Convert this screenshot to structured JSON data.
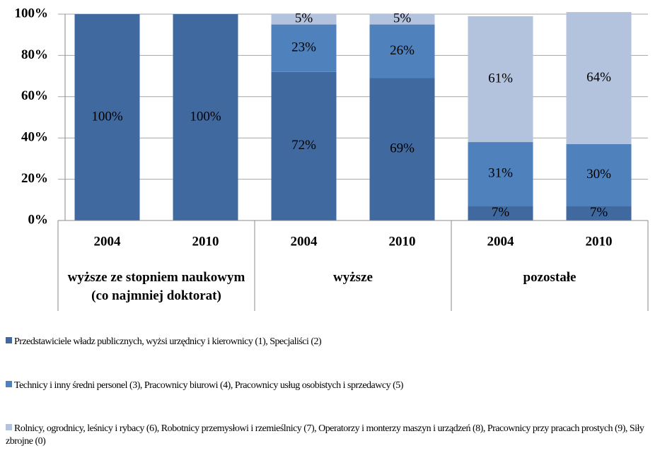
{
  "chart_data": {
    "type": "stacked-bar",
    "categories": [
      "2004",
      "2010",
      "2004",
      "2010",
      "2004",
      "2010"
    ],
    "groups": [
      "wyższe ze stopniem naukowym (co najmniej doktorat)",
      "wyższe",
      "pozostałe"
    ],
    "series": [
      {
        "name": "Przedstawiciele władz publicznych, wyżsi urzędnicy i kierownicy (1), Specjaliści (2)",
        "color": "#40699f",
        "values": [
          100,
          100,
          72,
          69,
          7,
          7
        ],
        "value_labels": [
          "100%",
          "100%",
          "72%",
          "69%",
          "7%",
          "7%"
        ]
      },
      {
        "name": "Technicy i inny średni personel (3), Pracownicy biurowi (4), Pracownicy usług osobistych i sprzedawcy (5)",
        "color": "#4f81bd",
        "values": [
          null,
          null,
          23,
          26,
          31,
          30
        ],
        "value_labels": [
          null,
          null,
          "23%",
          "26%",
          "31%",
          "30%"
        ]
      },
      {
        "name": "Rolnicy, ogrodnicy, leśnicy i rybacy (6), Robotnicy przemysłowi i rzemieślnicy (7), Operatorzy i monterzy maszyn i urządzeń (8), Pracownicy przy pracach prostych (9), Siły zbrojne (0)",
        "color": "#b3c2dd",
        "values": [
          null,
          null,
          5,
          5,
          61,
          64
        ],
        "value_labels": [
          null,
          null,
          "5%",
          "5%",
          "61%",
          "64%"
        ]
      }
    ],
    "ylim": [
      0,
      100
    ],
    "yticks": [
      {
        "value": 0,
        "label": "0%"
      },
      {
        "value": 20,
        "label": "20%"
      },
      {
        "value": 40,
        "label": "40%"
      },
      {
        "value": 60,
        "label": "60%"
      },
      {
        "value": 80,
        "label": "80%"
      },
      {
        "value": 100,
        "label": "100%"
      }
    ],
    "grid": true
  }
}
